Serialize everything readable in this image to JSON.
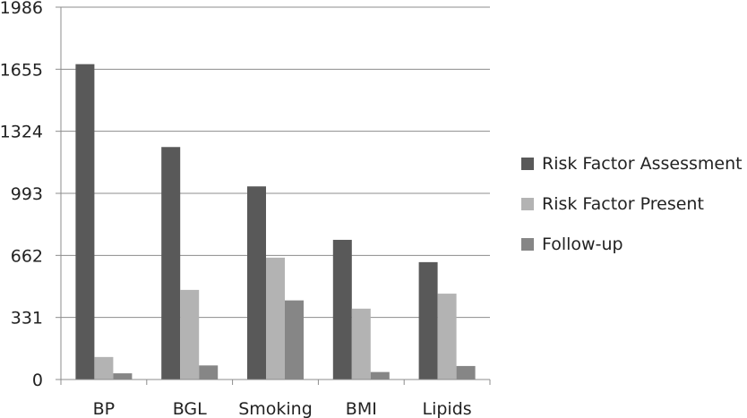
{
  "chart_data": {
    "type": "bar",
    "categories": [
      "BP",
      "BGL",
      "Smoking",
      "BMI",
      "Lipids"
    ],
    "series": [
      {
        "name": "Risk Factor Assessment",
        "color": "#595959",
        "values": [
          1682,
          1240,
          1030,
          745,
          626
        ]
      },
      {
        "name": "Risk Factor Present",
        "color": "#b3b3b3",
        "values": [
          120,
          478,
          650,
          378,
          458
        ]
      },
      {
        "name": "Follow-up",
        "color": "#868686",
        "values": [
          33,
          75,
          422,
          40,
          72
        ]
      }
    ],
    "yticks": [
      0,
      331,
      662,
      993,
      1324,
      1655,
      1986
    ],
    "ylim": [
      0,
      1986
    ],
    "grid": true,
    "legend_position": "right",
    "title": "",
    "xlabel": "",
    "ylabel": ""
  }
}
